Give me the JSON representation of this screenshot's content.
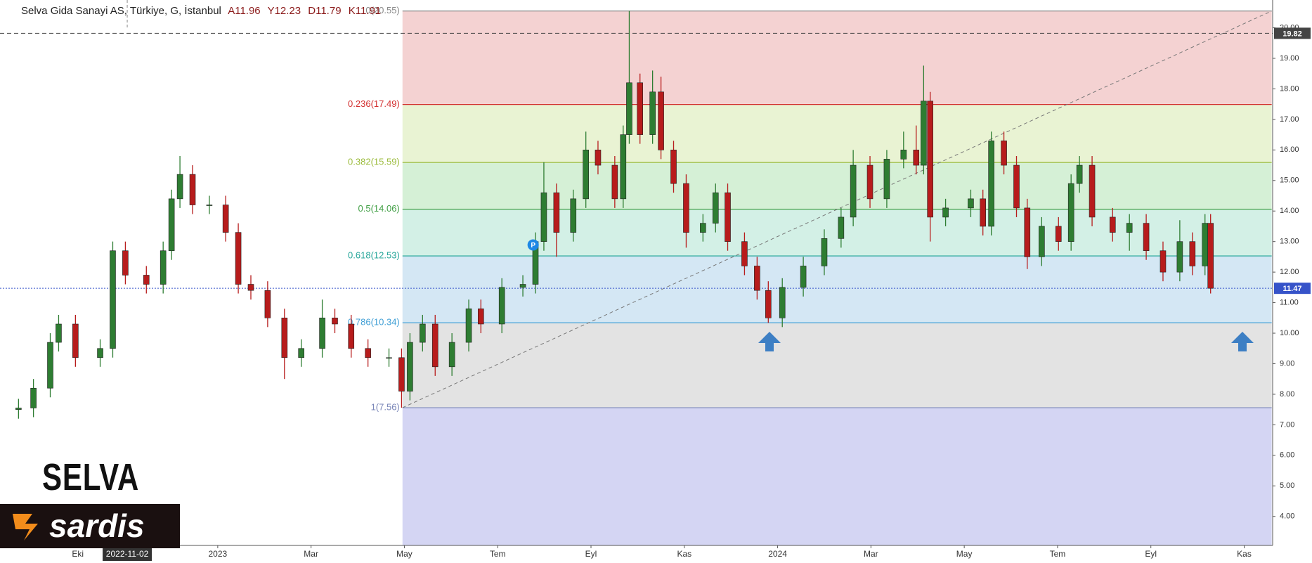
{
  "header": {
    "symbol": "Selva Gida Sanayi AS, Türkiye, G, İstanbul",
    "ohlc": [
      "A11.96",
      "Y12.23",
      "D11.79",
      "K11.91"
    ]
  },
  "watermark": "SELVA",
  "logo": "sardis",
  "chart_data": {
    "type": "candlestick",
    "x": [
      -1.27,
      -0.95,
      -0.59,
      -0.41,
      -0.05,
      0.48,
      0.75,
      1.02,
      1.47,
      1.83,
      2.01,
      2.19,
      2.46,
      2.82,
      3.17,
      3.44,
      3.71,
      4.07,
      4.43,
      4.79,
      5.24,
      5.51,
      5.86,
      6.22,
      6.67,
      6.94,
      7.12,
      7.39,
      7.66,
      8.02,
      8.38,
      8.64,
      9.09,
      9.54,
      9.81,
      9.99,
      10.26,
      10.62,
      10.89,
      11.15,
      11.51,
      11.69,
      11.82,
      12.05,
      12.32,
      12.5,
      12.77,
      13.04,
      13.4,
      13.67,
      13.93,
      14.29,
      14.56,
      14.8,
      15.1,
      15.55,
      16.0,
      16.36,
      16.62,
      16.98,
      17.34,
      17.7,
      17.97,
      18.13,
      18.27,
      18.6,
      19.14,
      19.4,
      19.58,
      19.85,
      20.12,
      20.35,
      20.66,
      21.02,
      21.29,
      21.47,
      21.74,
      22.18,
      22.54,
      22.9,
      23.26,
      23.62,
      23.89,
      24.16,
      24.28
    ],
    "open": [
      7.5,
      7.55,
      8.2,
      9.7,
      10.3,
      9.2,
      9.5,
      12.7,
      11.9,
      11.6,
      12.7,
      14.4,
      15.2,
      14.2,
      14.2,
      13.3,
      11.6,
      11.4,
      10.5,
      9.2,
      9.5,
      10.5,
      10.3,
      9.5,
      9.2,
      9.2,
      8.1,
      9.7,
      10.3,
      8.9,
      9.7,
      10.8,
      10.3,
      11.5,
      11.6,
      13.0,
      14.6,
      13.3,
      14.4,
      16.0,
      15.5,
      14.4,
      16.5,
      18.2,
      16.5,
      17.9,
      16.0,
      14.9,
      13.3,
      13.6,
      14.6,
      13.0,
      12.2,
      11.4,
      10.5,
      11.5,
      12.2,
      13.1,
      13.8,
      15.5,
      14.4,
      15.7,
      16.0,
      15.5,
      17.6,
      13.8,
      14.1,
      14.4,
      13.5,
      16.3,
      15.5,
      14.1,
      12.5,
      13.5,
      13.0,
      14.9,
      15.5,
      13.8,
      13.3,
      13.6,
      12.7,
      12.0,
      13.0,
      12.2,
      13.6
    ],
    "high": [
      7.85,
      8.5,
      10.0,
      10.6,
      10.6,
      9.8,
      13.0,
      13.0,
      12.2,
      13.0,
      14.7,
      15.8,
      15.5,
      14.5,
      14.5,
      13.6,
      11.9,
      11.7,
      10.8,
      9.8,
      11.1,
      10.8,
      10.6,
      9.8,
      9.5,
      9.5,
      10.0,
      10.6,
      10.6,
      10.0,
      11.1,
      11.1,
      11.8,
      11.9,
      13.3,
      15.6,
      14.9,
      14.7,
      16.6,
      16.3,
      15.8,
      16.8,
      20.55,
      18.5,
      18.6,
      18.4,
      16.3,
      15.2,
      13.9,
      14.9,
      14.9,
      13.3,
      12.5,
      11.7,
      11.8,
      12.5,
      13.4,
      14.1,
      16.0,
      15.8,
      16.0,
      16.6,
      16.8,
      18.76,
      17.9,
      14.4,
      14.7,
      14.7,
      16.6,
      16.6,
      15.8,
      14.4,
      13.8,
      13.8,
      15.2,
      15.8,
      15.8,
      14.1,
      13.9,
      13.9,
      13.0,
      13.7,
      13.3,
      13.9,
      13.9
    ],
    "low": [
      7.2,
      7.25,
      7.9,
      9.4,
      8.9,
      8.9,
      9.2,
      11.6,
      11.3,
      11.3,
      12.4,
      14.1,
      13.9,
      13.9,
      13.0,
      11.3,
      11.1,
      10.2,
      8.5,
      8.9,
      9.2,
      10.0,
      9.2,
      8.9,
      8.9,
      7.56,
      7.8,
      9.4,
      8.6,
      8.6,
      9.4,
      10.0,
      10.0,
      11.2,
      11.3,
      12.7,
      12.5,
      13.0,
      14.1,
      15.2,
      14.1,
      14.1,
      16.2,
      16.2,
      16.2,
      15.7,
      14.6,
      12.8,
      13.0,
      13.3,
      12.7,
      11.9,
      11.1,
      10.34,
      10.2,
      11.2,
      11.9,
      12.8,
      13.5,
      14.1,
      14.1,
      15.4,
      15.2,
      15.2,
      13.0,
      13.5,
      13.8,
      13.2,
      13.2,
      15.2,
      13.8,
      12.1,
      12.2,
      12.7,
      12.7,
      14.6,
      13.5,
      13.0,
      12.7,
      12.4,
      11.7,
      11.7,
      11.9,
      11.9,
      11.3
    ],
    "close": [
      7.55,
      8.2,
      9.7,
      10.3,
      9.2,
      9.5,
      12.7,
      11.9,
      11.6,
      12.7,
      14.4,
      15.2,
      14.2,
      14.2,
      13.3,
      11.6,
      11.4,
      10.5,
      9.2,
      9.5,
      10.5,
      10.3,
      9.5,
      9.2,
      9.2,
      8.1,
      9.7,
      10.3,
      8.9,
      9.7,
      10.8,
      10.3,
      11.5,
      11.6,
      13.0,
      14.6,
      13.3,
      14.4,
      16.0,
      15.5,
      14.4,
      16.5,
      18.2,
      16.5,
      17.9,
      16.0,
      14.9,
      13.3,
      13.6,
      14.6,
      13.0,
      12.2,
      11.4,
      10.5,
      11.5,
      12.2,
      13.1,
      13.8,
      15.5,
      14.4,
      15.7,
      16.0,
      15.5,
      17.6,
      13.8,
      14.1,
      14.4,
      13.5,
      16.3,
      15.5,
      14.1,
      12.5,
      13.5,
      13.0,
      14.9,
      15.5,
      13.8,
      13.3,
      13.6,
      12.7,
      12.0,
      13.0,
      12.2,
      13.6,
      11.47
    ],
    "up_color": "#2e7d32",
    "down_color": "#b71c1c",
    "xlim": [
      -1.667,
      25.61
    ],
    "xticks": [
      {
        "value": 0,
        "label": "Eki"
      },
      {
        "value": 3,
        "label": "2023"
      },
      {
        "value": 5,
        "label": "Mar"
      },
      {
        "value": 7,
        "label": "May"
      },
      {
        "value": 9,
        "label": "Tem"
      },
      {
        "value": 11,
        "label": "Eyl"
      },
      {
        "value": 13,
        "label": "Kas"
      },
      {
        "value": 15,
        "label": "2024"
      },
      {
        "value": 17,
        "label": "Mar"
      },
      {
        "value": 19,
        "label": "May"
      },
      {
        "value": 21,
        "label": "Tem"
      },
      {
        "value": 23,
        "label": "Eyl"
      },
      {
        "value": 25,
        "label": "Kas"
      }
    ],
    "crosshair_x": {
      "value": 1.06,
      "label": "2022-11-02"
    },
    "ylim": [
      3.05,
      20.91
    ],
    "yticks": [
      {
        "value": 4,
        "label": "4.00"
      },
      {
        "value": 5,
        "label": "5.00"
      },
      {
        "value": 6,
        "label": "6.00"
      },
      {
        "value": 7,
        "label": "7.00"
      },
      {
        "value": 8,
        "label": "8.00"
      },
      {
        "value": 9,
        "label": "9.00"
      },
      {
        "value": 10,
        "label": "10.00"
      },
      {
        "value": 11,
        "label": "11.00"
      },
      {
        "value": 12,
        "label": "12.00"
      },
      {
        "value": 13,
        "label": "13.00"
      },
      {
        "value": 14,
        "label": "14.00"
      },
      {
        "value": 15,
        "label": "15.00"
      },
      {
        "value": 16,
        "label": "16.00"
      },
      {
        "value": 17,
        "label": "17.00"
      },
      {
        "value": 18,
        "label": "18.00"
      },
      {
        "value": 19,
        "label": "19.00"
      },
      {
        "value": 20,
        "label": "20.00"
      }
    ],
    "price_lines": [
      {
        "value": 19.82,
        "label": "19.82",
        "color": "#444444",
        "dash": "6 4"
      },
      {
        "value": 11.47,
        "label": "11.47",
        "color": "#3653c9",
        "dash": "2 2"
      }
    ],
    "fib": {
      "x": [
        6.96,
        25.59
      ],
      "trend_color": "#777777",
      "levels": [
        {
          "price": 20.55,
          "label": "0(20.55)",
          "color": "#888888",
          "fill": "#f4d2d2"
        },
        {
          "price": 17.49,
          "label": "0.236(17.49)",
          "color": "#d32f2f",
          "fill": "#e9f3d3"
        },
        {
          "price": 15.59,
          "label": "0.382(15.59)",
          "color": "#9bbb3b",
          "fill": "#d5f0d6"
        },
        {
          "price": 14.06,
          "label": "0.5(14.06)",
          "color": "#43a047",
          "fill": "#d3f0e6"
        },
        {
          "price": 12.53,
          "label": "0.618(12.53)",
          "color": "#26a69a",
          "fill": "#d4e7f4"
        },
        {
          "price": 10.34,
          "label": "0.786(10.34)",
          "color": "#42a0d6",
          "fill": "#e3e3e3"
        },
        {
          "price": 7.56,
          "label": "1(7.56)",
          "color": "#7a86b8",
          "fill": "#d4d5f3"
        }
      ]
    },
    "markers": [
      {
        "x": 9.76,
        "y": 12.89,
        "label": "P",
        "color": "#1e88e5"
      }
    ]
  }
}
